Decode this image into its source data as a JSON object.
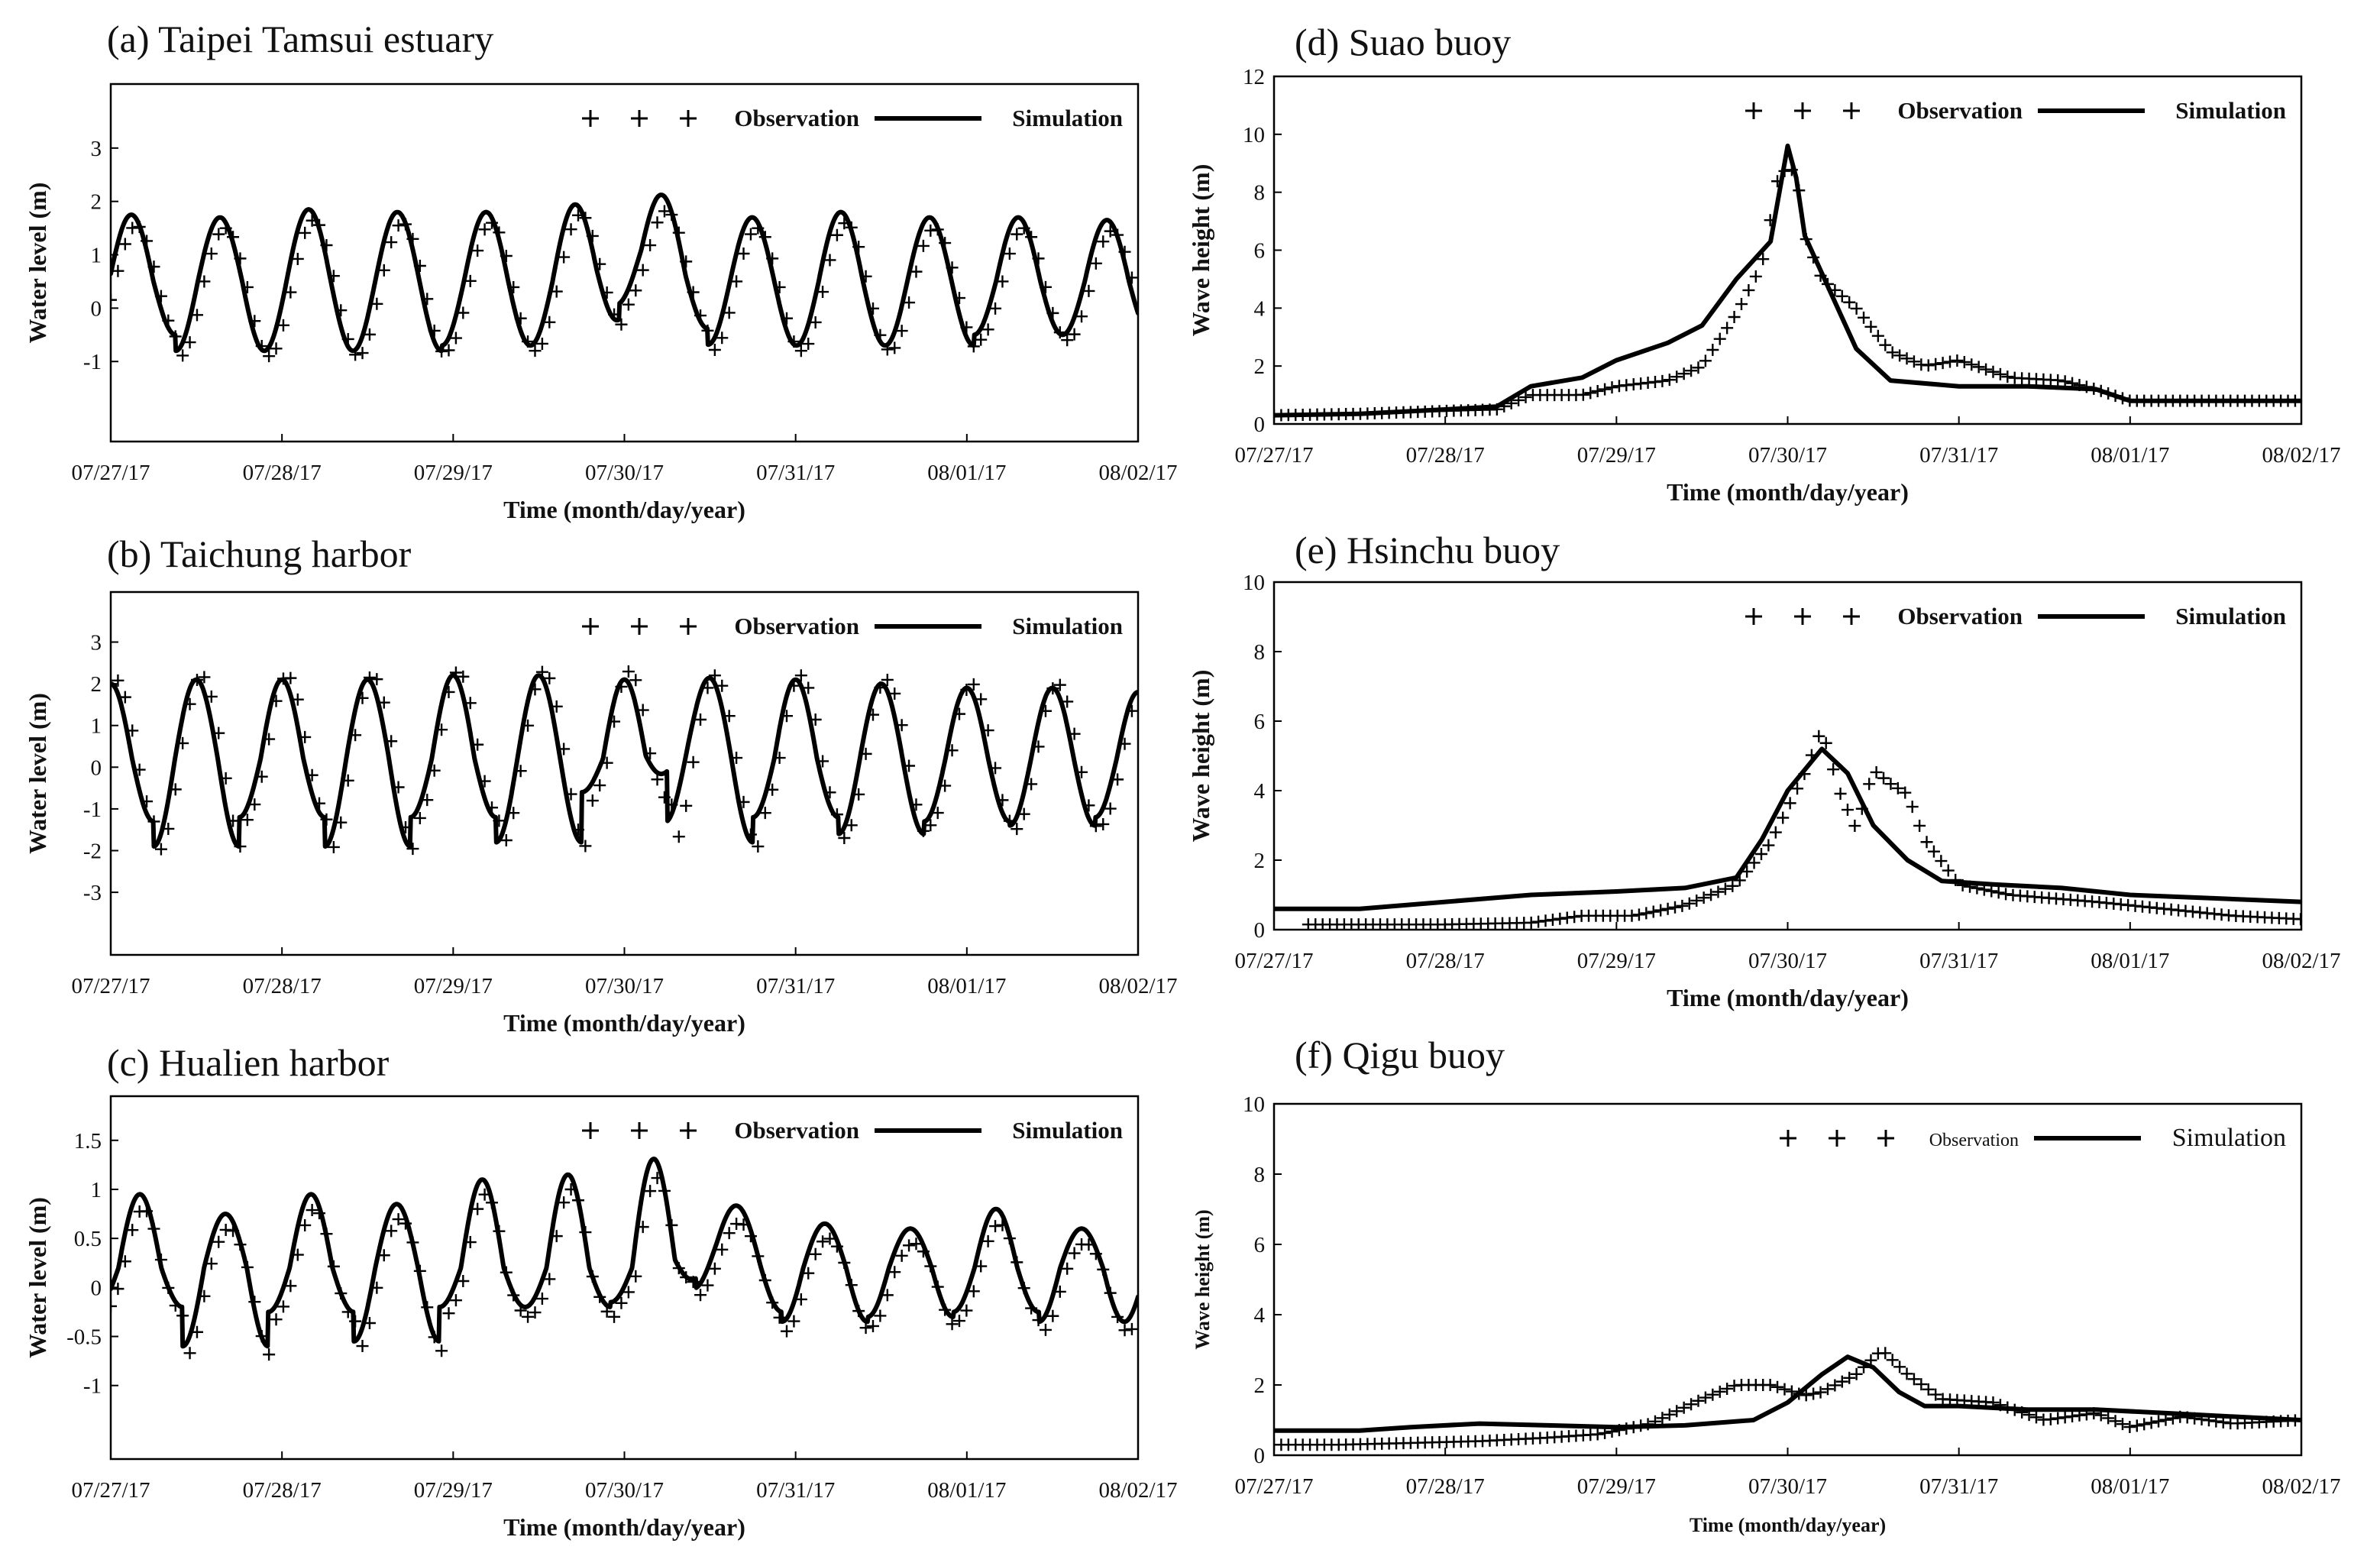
{
  "figure": {
    "legend_observation": "Observation",
    "legend_simulation": "Simulation",
    "legend_plus": "+ + +",
    "xlabel": "Time  (month/day/year)",
    "ylabel_level": "Water level  (m)",
    "ylabel_wave": "Wave height  (m)",
    "x_ticks": [
      "07/27/17",
      "07/28/17",
      "07/29/17",
      "07/30/17",
      "07/31/17",
      "08/01/17",
      "08/02/17"
    ]
  },
  "chart_data": [
    {
      "id": "a",
      "type": "line",
      "title": "(a) Taipei Tamsui estuary",
      "xlabel": "Time  (month/day/year)",
      "ylabel": "Water level  (m)",
      "xlim": [
        0,
        6
      ],
      "ylim": [
        -2.5,
        4.2
      ],
      "yticks": [
        -1,
        0,
        1,
        2,
        3
      ],
      "ytick_labels": [
        "-1",
        "0",
        "1",
        "2",
        "3"
      ],
      "legend": "top-right",
      "legend_style": "bold",
      "series": [
        {
          "name": "Simulation",
          "kind": "tide",
          "period_days": 0.518,
          "phase": 0.12,
          "mean": 0.5,
          "amplitudes": [
            1.25,
            1.2,
            1.35,
            1.3,
            1.3,
            1.4,
            1.25,
            1.2,
            1.3,
            1.2,
            1.2,
            1.15,
            1.15
          ],
          "amplitude_lows": [
            1.0,
            1.3,
            1.3,
            1.3,
            1.2,
            1.2,
            0.9,
            1.2,
            1.2,
            1.2,
            1.0,
            1.0,
            0.9
          ],
          "surge": {
            "center": 3.07,
            "width": 0.22,
            "height": 0.6
          }
        },
        {
          "name": "Observation",
          "kind": "tide_plus",
          "period_days": 0.518,
          "phase": 0.15,
          "mean": 0.4,
          "amplitudes": [
            1.15,
            1.1,
            1.25,
            1.2,
            1.2,
            1.3,
            1.15,
            1.1,
            1.2,
            1.1,
            1.1,
            1.05,
            1.05
          ],
          "amplitude_lows": [
            1.0,
            1.3,
            1.3,
            1.3,
            1.2,
            1.2,
            0.9,
            1.2,
            1.2,
            1.2,
            1.0,
            1.0,
            0.9
          ],
          "surge": {
            "center": 3.07,
            "width": 0.22,
            "height": 0.55
          },
          "step_days": 0.042
        }
      ]
    },
    {
      "id": "b",
      "type": "line",
      "title": "(b) Taichung harbor",
      "xlabel": "Time  (month/day/year)",
      "ylabel": "Water level  (m)",
      "xlim": [
        0,
        6
      ],
      "ylim": [
        -4.5,
        4.2
      ],
      "yticks": [
        -3,
        -2,
        -1,
        0,
        1,
        2,
        3
      ],
      "ytick_labels": [
        "-3",
        "-2",
        "-1",
        "0",
        "1",
        "2",
        "3"
      ],
      "legend": "top-right",
      "legend_style": "bold",
      "series": [
        {
          "name": "Simulation",
          "kind": "tide",
          "period_days": 0.5,
          "phase": 0.0,
          "mean": 0.2,
          "amplitudes": [
            1.8,
            1.9,
            1.9,
            1.9,
            2.0,
            2.0,
            1.9,
            1.9,
            1.9,
            1.8,
            1.7,
            1.7,
            1.6
          ],
          "amplitude_lows": [
            1.5,
            2.1,
            1.4,
            2.1,
            1.4,
            2.0,
            0.8,
            2.0,
            1.4,
            1.8,
            1.5,
            1.6,
            1.4
          ],
          "surge": {
            "center": 3.3,
            "width": 0.12,
            "height": 0.6
          }
        },
        {
          "name": "Observation",
          "kind": "tide_plus",
          "period_days": 0.5,
          "phase": 0.03,
          "mean": 0.2,
          "amplitudes": [
            1.9,
            2.0,
            2.0,
            2.0,
            2.1,
            2.1,
            2.1,
            2.0,
            2.0,
            1.9,
            1.8,
            1.8,
            1.7
          ],
          "amplitude_lows": [
            1.6,
            2.2,
            1.5,
            2.2,
            1.5,
            2.1,
            1.1,
            2.1,
            1.5,
            1.9,
            1.6,
            1.7,
            1.6
          ],
          "surge": {
            "center": 3.3,
            "width": 0.12,
            "height": 0.0
          },
          "step_days": 0.042
        }
      ]
    },
    {
      "id": "c",
      "type": "line",
      "title": "(c) Hualien harbor",
      "xlabel": "Time  (month/day/year)",
      "ylabel": "Water level  (m)",
      "xlim": [
        0,
        6
      ],
      "ylim": [
        -1.75,
        1.95
      ],
      "yticks": [
        -1,
        -0.5,
        0,
        0.5,
        1,
        1.5
      ],
      "ytick_labels": [
        "-1",
        "-0.5",
        "0",
        "0.5",
        "1",
        "1.5"
      ],
      "legend": "top-right",
      "legend_style": "bold",
      "series": [
        {
          "name": "Simulation",
          "kind": "tide",
          "period_days": 0.5,
          "phase": 0.17,
          "mean": 0.2,
          "amplitudes": [
            0.75,
            0.55,
            0.75,
            0.65,
            0.9,
            0.95,
            1.1,
            0.5,
            0.45,
            0.4,
            0.6,
            0.4,
            0.35
          ],
          "amplitude_lows": [
            0.4,
            0.8,
            0.45,
            0.75,
            0.4,
            0.4,
            0.35,
            0.45,
            0.55,
            0.5,
            0.45,
            0.55,
            0.55
          ],
          "surge": {
            "center": 3.5,
            "width": 0.18,
            "height": 0.3
          }
        },
        {
          "name": "Observation",
          "kind": "tide_plus",
          "period_days": 0.5,
          "phase": 0.19,
          "mean": 0.1,
          "amplitudes": [
            0.7,
            0.5,
            0.7,
            0.6,
            0.85,
            0.9,
            1.0,
            0.45,
            0.4,
            0.35,
            0.55,
            0.35,
            0.3
          ],
          "amplitude_lows": [
            0.4,
            0.8,
            0.45,
            0.75,
            0.4,
            0.4,
            0.3,
            0.45,
            0.55,
            0.5,
            0.45,
            0.55,
            0.55
          ],
          "surge": {
            "center": 3.5,
            "width": 0.18,
            "height": 0.3
          },
          "step_days": 0.042
        }
      ]
    },
    {
      "id": "d",
      "type": "line",
      "title": "(d)  Suao buoy",
      "xlabel": "Time  (month/day/year)",
      "ylabel": "Wave height  (m)",
      "xlim": [
        0,
        6
      ],
      "ylim": [
        0,
        12
      ],
      "yticks": [
        0,
        2,
        4,
        6,
        8,
        10,
        12
      ],
      "ytick_labels": [
        "0",
        "2",
        "4",
        "6",
        "8",
        "10",
        "12"
      ],
      "legend": "top-right",
      "legend_style": "bold",
      "series": [
        {
          "name": "Simulation",
          "kind": "points",
          "x": [
            0,
            0.5,
            1.0,
            1.3,
            1.5,
            1.8,
            2.0,
            2.3,
            2.5,
            2.7,
            2.9,
            3.0,
            3.05,
            3.1,
            3.2,
            3.4,
            3.6,
            4.0,
            4.4,
            4.8,
            5.0,
            5.5,
            6.0
          ],
          "y": [
            0.3,
            0.35,
            0.5,
            0.6,
            1.3,
            1.6,
            2.2,
            2.8,
            3.4,
            5.0,
            6.3,
            9.6,
            8.5,
            6.5,
            5.2,
            2.6,
            1.5,
            1.3,
            1.3,
            1.2,
            0.8,
            0.8,
            0.8
          ]
        },
        {
          "name": "Observation",
          "kind": "points_plus",
          "x": [
            0,
            0.5,
            1.0,
            1.3,
            1.5,
            1.8,
            2.0,
            2.3,
            2.5,
            2.7,
            2.85,
            2.95,
            3.05,
            3.1,
            3.2,
            3.4,
            3.6,
            3.8,
            4.0,
            4.3,
            4.6,
            4.8,
            5.0,
            5.5,
            6.0
          ],
          "y": [
            0.3,
            0.35,
            0.45,
            0.5,
            1.0,
            1.0,
            1.3,
            1.5,
            2.0,
            3.8,
            5.5,
            8.7,
            8.8,
            6.5,
            5.0,
            4.0,
            2.5,
            2.0,
            2.2,
            1.6,
            1.5,
            1.2,
            0.8,
            0.8,
            0.8
          ]
        }
      ]
    },
    {
      "id": "e",
      "type": "line",
      "title": "(e)  Hsinchu buoy",
      "xlabel": "Time  (month/day/year)",
      "ylabel": "Wave height  (m)",
      "xlim": [
        0,
        6
      ],
      "ylim": [
        0,
        10
      ],
      "yticks": [
        0,
        2,
        4,
        6,
        8,
        10
      ],
      "ytick_labels": [
        "0",
        "2",
        "4",
        "6",
        "8",
        "10"
      ],
      "legend": "top-right",
      "legend_style": "bold",
      "series": [
        {
          "name": "Simulation",
          "kind": "points",
          "x": [
            0,
            0.5,
            1.0,
            1.5,
            2.0,
            2.4,
            2.7,
            2.85,
            3.0,
            3.2,
            3.35,
            3.5,
            3.7,
            3.9,
            4.2,
            4.6,
            5.0,
            5.5,
            6.0
          ],
          "y": [
            0.6,
            0.6,
            0.8,
            1.0,
            1.1,
            1.2,
            1.5,
            2.6,
            4.0,
            5.2,
            4.5,
            3.0,
            2.0,
            1.4,
            1.3,
            1.2,
            1.0,
            0.9,
            0.8
          ]
        },
        {
          "name": "Observation",
          "kind": "points_plus",
          "x": [
            0.2,
            0.5,
            1.0,
            1.5,
            1.8,
            2.1,
            2.4,
            2.7,
            2.9,
            3.1,
            3.2,
            3.3,
            3.4,
            3.5,
            3.6,
            3.7,
            3.8,
            4.0,
            4.3,
            4.8,
            5.2,
            5.6,
            6.0
          ],
          "y": [
            0.15,
            0.15,
            0.15,
            0.2,
            0.4,
            0.4,
            0.7,
            1.3,
            2.5,
            4.5,
            5.8,
            4.0,
            2.9,
            4.6,
            4.2,
            3.9,
            2.6,
            1.3,
            1.0,
            0.8,
            0.6,
            0.4,
            0.3
          ]
        }
      ]
    },
    {
      "id": "f",
      "type": "line",
      "title": "(f)  Qigu buoy",
      "xlabel": "Time  (month/day/year)",
      "ylabel": "Wave height  (m)",
      "xlim": [
        0,
        6
      ],
      "ylim": [
        0,
        10
      ],
      "yticks": [
        0,
        2,
        4,
        6,
        8,
        10
      ],
      "ytick_labels": [
        "0",
        "2",
        "4",
        "6",
        "8",
        "10"
      ],
      "legend": "top-right",
      "legend_style": "plain",
      "series": [
        {
          "name": "Simulation",
          "kind": "points",
          "x": [
            0,
            0.5,
            0.8,
            1.2,
            1.6,
            2.0,
            2.4,
            2.8,
            3.0,
            3.2,
            3.35,
            3.5,
            3.65,
            3.8,
            4.0,
            4.4,
            4.8,
            5.2,
            5.6,
            6.0
          ],
          "y": [
            0.7,
            0.7,
            0.8,
            0.9,
            0.85,
            0.8,
            0.85,
            1.0,
            1.5,
            2.3,
            2.8,
            2.5,
            1.8,
            1.4,
            1.4,
            1.3,
            1.3,
            1.2,
            1.1,
            1.0
          ]
        },
        {
          "name": "Observation",
          "kind": "points_plus",
          "x": [
            0,
            0.4,
            0.8,
            1.2,
            1.6,
            1.9,
            2.2,
            2.5,
            2.7,
            2.9,
            3.1,
            3.2,
            3.4,
            3.55,
            3.7,
            3.9,
            4.2,
            4.5,
            4.8,
            5.0,
            5.3,
            5.6,
            6.0
          ],
          "y": [
            0.3,
            0.3,
            0.35,
            0.4,
            0.5,
            0.6,
            0.9,
            1.6,
            2.0,
            2.0,
            1.7,
            1.8,
            2.3,
            3.0,
            2.3,
            1.6,
            1.5,
            1.0,
            1.2,
            0.8,
            1.1,
            0.9,
            1.0
          ]
        }
      ]
    }
  ]
}
